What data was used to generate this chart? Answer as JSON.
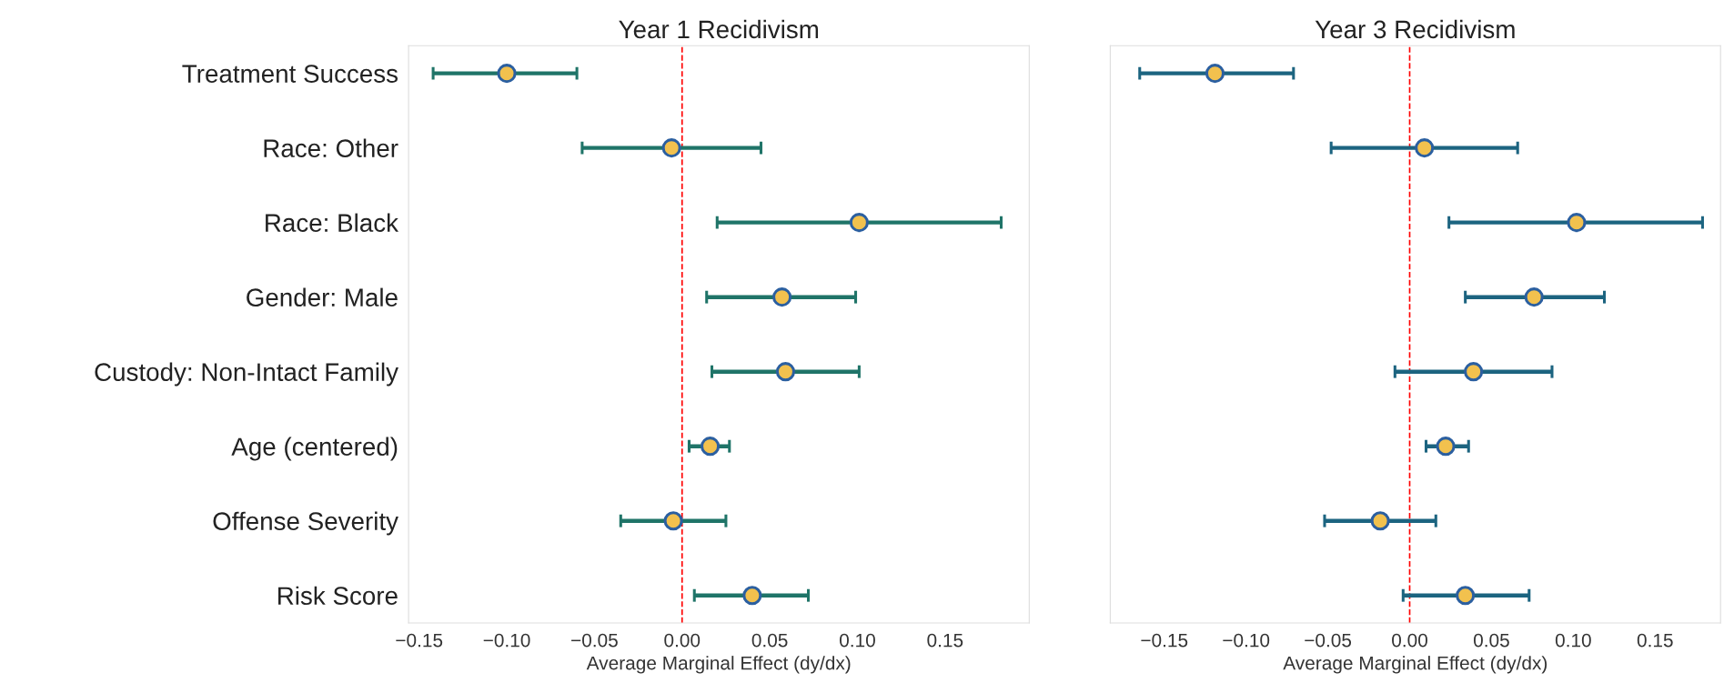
{
  "chart_data": [
    {
      "type": "scatter",
      "orientation": "horizontal",
      "title": "Year 1 Recidivism",
      "xlabel": "Average Marginal Effect (dy/dx)",
      "categories": [
        "Treatment Success",
        "Race: Other",
        "Race: Black",
        "Gender: Male",
        "Custody: Non-Intact Family",
        "Age (centered)",
        "Offense Severity",
        "Risk Score"
      ],
      "series": [
        {
          "color": "#f2c14e",
          "values": [
            -0.1,
            -0.006,
            0.101,
            0.057,
            0.059,
            0.016,
            -0.005,
            0.04
          ],
          "errors": [
            [
              -0.142,
              -0.06
            ],
            [
              -0.057,
              0.045
            ],
            [
              0.02,
              0.182
            ],
            [
              0.014,
              0.099
            ],
            [
              0.017,
              0.101
            ],
            [
              0.004,
              0.027
            ],
            [
              -0.035,
              0.025
            ],
            [
              0.007,
              0.072
            ]
          ]
        }
      ],
      "xlim": [
        -0.156,
        0.198
      ],
      "xticks": [
        {
          "value": -0.15,
          "label": "−0.15"
        },
        {
          "value": -0.1,
          "label": "−0.10"
        },
        {
          "value": -0.05,
          "label": "−0.05"
        },
        {
          "value": 0,
          "label": "0.00"
        },
        {
          "value": 0.05,
          "label": "0.05"
        },
        {
          "value": 0.1,
          "label": "0.10"
        },
        {
          "value": 0.15,
          "label": "0.15"
        }
      ],
      "ref_lines": [
        {
          "axis": "x",
          "value": 0,
          "color": "#ff0000",
          "line_style": "dashed"
        }
      ],
      "marker": "circle",
      "grid": false
    },
    {
      "type": "scatter",
      "orientation": "horizontal",
      "title": "Year 3 Recidivism",
      "xlabel": "Average Marginal Effect (dy/dx)",
      "categories": [
        null,
        null,
        null,
        null,
        null,
        null,
        null,
        null
      ],
      "series": [
        {
          "color": "#f2c14e",
          "values": [
            -0.119,
            0.009,
            0.102,
            0.076,
            0.039,
            0.022,
            -0.018,
            0.034
          ],
          "errors": [
            [
              -0.165,
              -0.071
            ],
            [
              -0.048,
              0.066
            ],
            [
              0.024,
              0.179
            ],
            [
              0.034,
              0.119
            ],
            [
              -0.009,
              0.087
            ],
            [
              0.01,
              0.036
            ],
            [
              -0.052,
              0.016
            ],
            [
              -0.004,
              0.073
            ]
          ]
        }
      ],
      "xlim": [
        -0.183,
        0.19
      ],
      "xticks": [
        {
          "value": -0.15,
          "label": "−0.15"
        },
        {
          "value": -0.1,
          "label": "−0.10"
        },
        {
          "value": -0.05,
          "label": "−0.05"
        },
        {
          "value": 0,
          "label": "0.00"
        },
        {
          "value": 0.05,
          "label": "0.05"
        },
        {
          "value": 0.1,
          "label": "0.10"
        },
        {
          "value": 0.15,
          "label": "0.15"
        }
      ],
      "ref_lines": [
        {
          "axis": "x",
          "value": 0,
          "color": "#ff0000",
          "line_style": "dashed"
        }
      ],
      "marker": "circle",
      "grid": false,
      "tick_labels": "x"
    }
  ]
}
